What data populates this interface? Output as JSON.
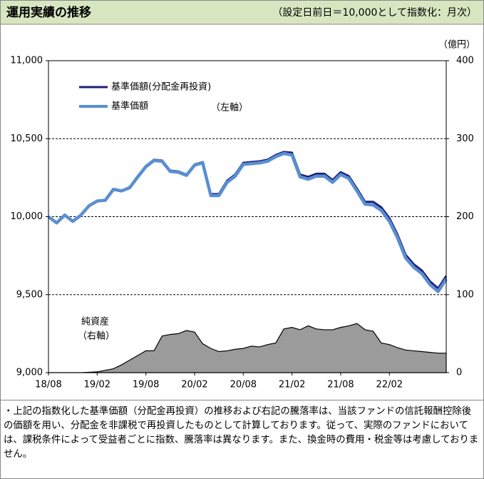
{
  "chart_data": {
    "type": "line",
    "title": "運用実績の推移",
    "subtitle": "（設定日前日＝10,000として指数化：月次）",
    "categories": [
      "18/08",
      null,
      null,
      null,
      null,
      null,
      "19/02",
      null,
      null,
      null,
      null,
      null,
      "19/08",
      null,
      null,
      null,
      null,
      null,
      "20/02",
      null,
      null,
      null,
      null,
      null,
      "20/08",
      null,
      null,
      null,
      null,
      null,
      "21/02",
      null,
      null,
      null,
      null,
      null,
      "21/08",
      null,
      null,
      null,
      null,
      null,
      "22/02",
      null,
      null,
      null,
      null,
      null,
      null,
      null
    ],
    "series": [
      {
        "name": "基準価額(分配金再投資)",
        "color": "#1c1f7c",
        "values": [
          10000,
          9960,
          10010,
          9970,
          10010,
          10070,
          10100,
          10105,
          10175,
          10165,
          10190,
          10260,
          10325,
          10365,
          10360,
          10295,
          10290,
          10270,
          10335,
          10350,
          10145,
          10145,
          10230,
          10270,
          10345,
          10350,
          10355,
          10365,
          10395,
          10415,
          10410,
          10270,
          10255,
          10275,
          10275,
          10235,
          10285,
          10260,
          10180,
          10095,
          10095,
          10060,
          9990,
          9885,
          9755,
          9695,
          9655,
          9585,
          9540,
          9620
        ]
      },
      {
        "name": "基準価額",
        "color": "#5a8fd0",
        "values": [
          10000,
          9960,
          10010,
          9970,
          10010,
          10070,
          10100,
          10105,
          10175,
          10165,
          10185,
          10255,
          10320,
          10360,
          10355,
          10290,
          10285,
          10265,
          10330,
          10345,
          10135,
          10135,
          10220,
          10260,
          10335,
          10340,
          10345,
          10355,
          10385,
          10405,
          10395,
          10255,
          10240,
          10260,
          10260,
          10220,
          10270,
          10245,
          10165,
          10080,
          10075,
          10040,
          9970,
          9865,
          9735,
          9675,
          9635,
          9565,
          9520,
          9600
        ]
      },
      {
        "name": "純資産",
        "type": "area",
        "axis": "y2",
        "color": "#9b9b9b",
        "values": [
          0,
          0,
          0,
          0,
          0,
          0.5,
          1,
          3,
          5,
          10,
          16,
          22,
          28,
          28,
          47,
          49,
          50,
          54,
          52,
          37,
          31,
          27,
          28,
          30,
          31,
          34,
          33,
          36,
          38,
          56,
          58,
          55,
          60,
          56,
          55,
          55,
          58,
          60,
          63,
          55,
          53,
          38,
          36,
          32,
          29,
          28,
          27,
          26,
          25,
          25
        ]
      }
    ],
    "ylim": [
      9000,
      11000
    ],
    "yticks": [
      {
        "value": 9000,
        "label": "9,000"
      },
      {
        "value": 9500,
        "label": "9,500"
      },
      {
        "value": 10000,
        "label": "10,000"
      },
      {
        "value": 10500,
        "label": "10,500"
      },
      {
        "value": 11000,
        "label": "11,000"
      }
    ],
    "y2lim": [
      0,
      400
    ],
    "y2ticks": [
      0,
      100,
      200,
      300,
      400
    ],
    "y2_label": "（億円）",
    "grid": true,
    "annotations": [
      "（左軸）",
      "（右軸）"
    ]
  },
  "note": "・上記の指数化した基準価額（分配金再投資）の推移および右記の騰落率は、当該ファンドの信託報酬控除後の価額を用い、分配金を非課税で再投資したものとして計算しております。従って、実際のファンドにおいては、課税条件によって受益者ごとに指数、騰落率は異なります。また、換金時の費用・税金等は考慮しておりません。"
}
